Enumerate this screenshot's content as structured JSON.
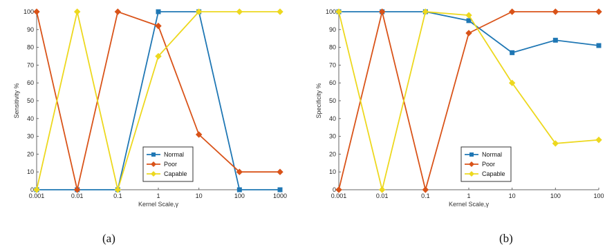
{
  "chart_data": [
    {
      "type": "line",
      "caption": "(a)",
      "xlabel": "Kernel Scale,γ",
      "ylabel": "Sensitivity %",
      "x": [
        "0.001",
        "0.01",
        "0.1",
        "1",
        "10",
        "100",
        "1000"
      ],
      "ylim": [
        0,
        100
      ],
      "yticks": [
        0,
        10,
        20,
        30,
        40,
        50,
        60,
        70,
        80,
        90,
        100
      ],
      "legend_position": "bottom-right",
      "grid": false,
      "series": [
        {
          "name": "Normal",
          "color": "#1f77b4",
          "marker": "square",
          "values": [
            0,
            0,
            0,
            100,
            100,
            0,
            0
          ]
        },
        {
          "name": "Poor",
          "color": "#d95319",
          "marker": "diamond",
          "values": [
            100,
            0,
            100,
            92,
            31,
            10,
            10
          ]
        },
        {
          "name": "Capable",
          "color": "#edd81e",
          "marker": "diamond",
          "values": [
            0,
            100,
            0,
            75,
            100,
            100,
            100
          ]
        }
      ]
    },
    {
      "type": "line",
      "caption": "(b)",
      "xlabel": "Kernel Scale,γ",
      "ylabel": "Specificity %",
      "x": [
        "0.001",
        "0.01",
        "0.1",
        "1",
        "10",
        "100",
        "100"
      ],
      "ylim": [
        0,
        100
      ],
      "yticks": [
        0,
        10,
        20,
        30,
        40,
        50,
        60,
        70,
        80,
        90,
        100
      ],
      "legend_position": "bottom-right",
      "grid": false,
      "series": [
        {
          "name": "Normal",
          "color": "#1f77b4",
          "marker": "square",
          "values": [
            100,
            100,
            100,
            95,
            77,
            84,
            81
          ]
        },
        {
          "name": "Poor",
          "color": "#d95319",
          "marker": "diamond",
          "values": [
            0,
            100,
            0,
            88,
            100,
            100,
            100
          ]
        },
        {
          "name": "Capable",
          "color": "#edd81e",
          "marker": "diamond",
          "values": [
            100,
            0,
            100,
            98,
            60,
            26,
            28
          ]
        }
      ]
    }
  ]
}
